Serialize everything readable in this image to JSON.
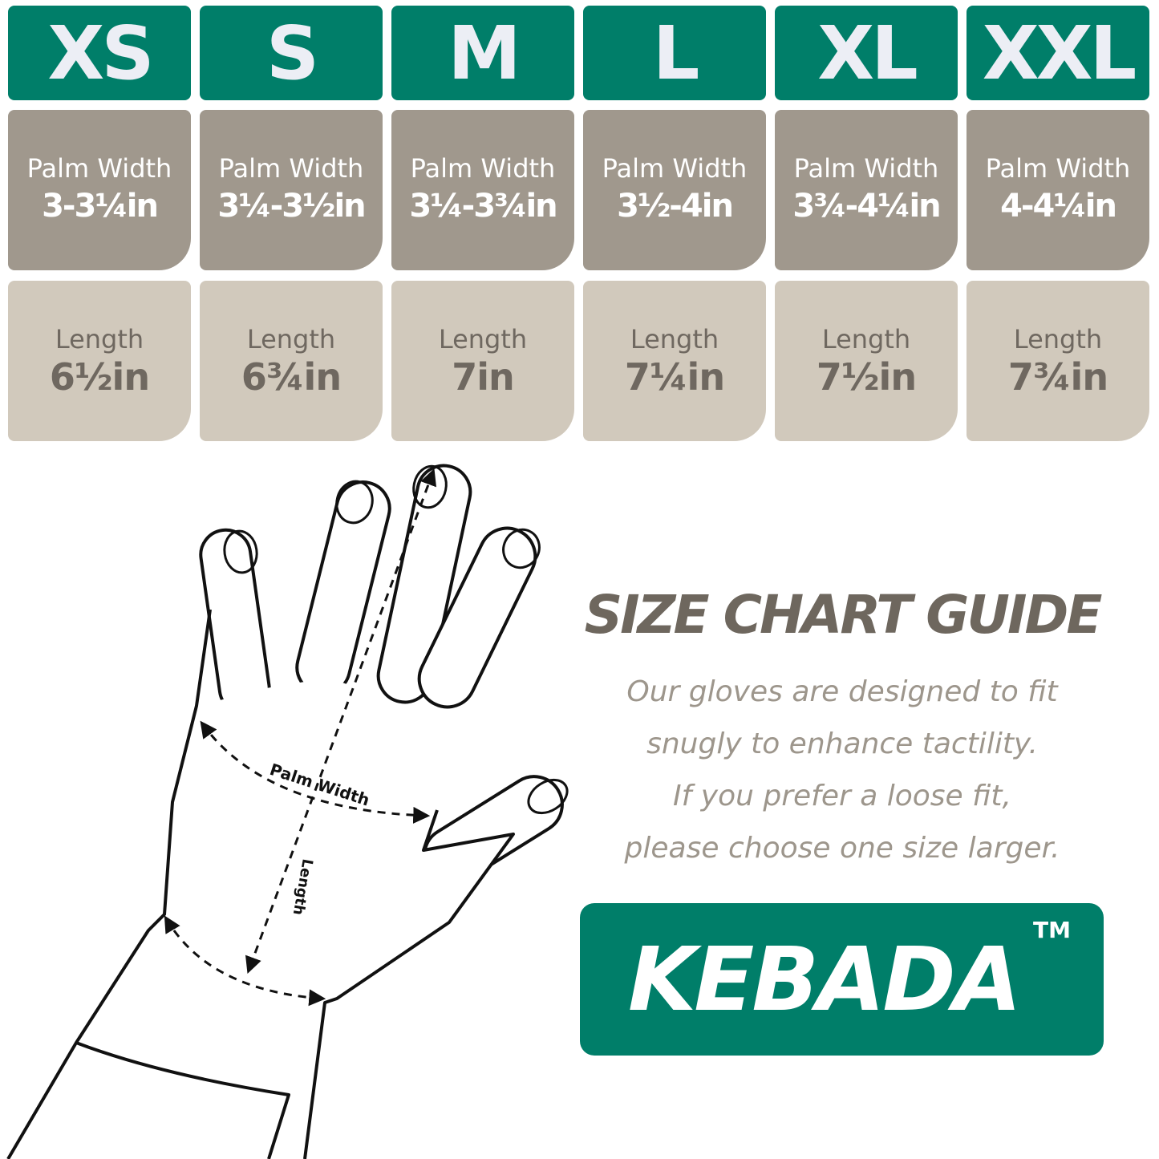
{
  "colors": {
    "brand_green": "#007e69",
    "palm_cell": "#a0988d",
    "length_cell": "#d1c9bc",
    "title_text": "#6e675e"
  },
  "sizes": [
    {
      "size": "XS",
      "palm_label": "Palm Width",
      "palm_value": "3-3¼in",
      "length_label": "Length",
      "length_value": "6½in"
    },
    {
      "size": "S",
      "palm_label": "Palm Width",
      "palm_value": "3¼-3½in",
      "length_label": "Length",
      "length_value": "6¾in"
    },
    {
      "size": "M",
      "palm_label": "Palm Width",
      "palm_value": "3¼-3¾in",
      "length_label": "Length",
      "length_value": "7in"
    },
    {
      "size": "L",
      "palm_label": "Palm Width",
      "palm_value": "3½-4in",
      "length_label": "Length",
      "length_value": "7¼in"
    },
    {
      "size": "XL",
      "palm_label": "Palm Width",
      "palm_value": "3¾-4¼in",
      "length_label": "Length",
      "length_value": "7½in"
    },
    {
      "size": "XXL",
      "palm_label": "Palm Width",
      "palm_value": "4-4¼in",
      "length_label": "Length",
      "length_value": "7¾in"
    }
  ],
  "diagram": {
    "palm_width_label": "Palm Width",
    "length_label": "Length"
  },
  "guide": {
    "title": "SIZE CHART GUIDE",
    "lines": [
      "Our gloves are designed to fit",
      "snugly to enhance tactility.",
      "If you prefer a loose fit,",
      "please choose one size larger."
    ]
  },
  "logo": {
    "brand": "KEBADA",
    "trademark": "TM"
  }
}
